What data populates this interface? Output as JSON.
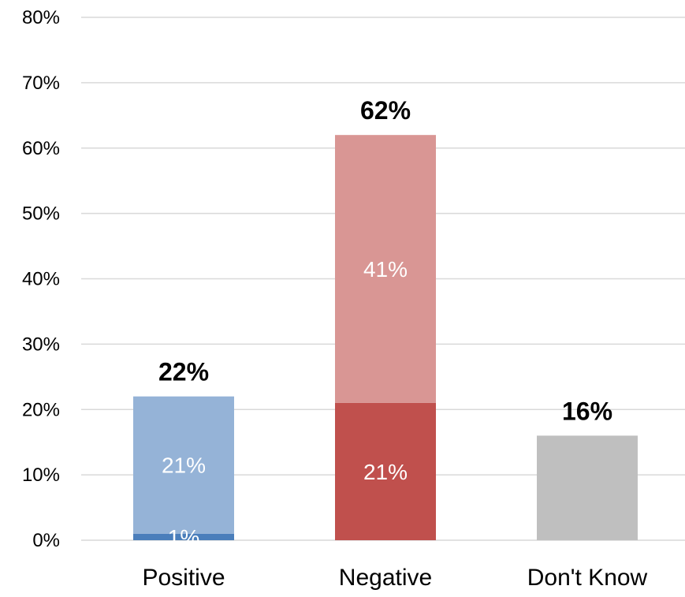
{
  "chart_data": {
    "type": "bar",
    "stacked": true,
    "categories": [
      "Positive",
      "Negative",
      "Don't Know"
    ],
    "ylim": [
      0,
      80
    ],
    "yticks": [
      "0%",
      "10%",
      "20%",
      "30%",
      "40%",
      "50%",
      "60%",
      "70%",
      "80%"
    ],
    "ytick_values": [
      0,
      10,
      20,
      30,
      40,
      50,
      60,
      70,
      80
    ],
    "grid": true,
    "legend": "none",
    "bars": [
      {
        "category": "Positive",
        "total": 22,
        "total_label": "22%",
        "segments": [
          {
            "value": 1,
            "label": "1%",
            "color": "#4a7ebb"
          },
          {
            "value": 21,
            "label": "21%",
            "color": "#95b3d7"
          }
        ]
      },
      {
        "category": "Negative",
        "total": 62,
        "total_label": "62%",
        "segments": [
          {
            "value": 21,
            "label": "21%",
            "color": "#c0504d"
          },
          {
            "value": 41,
            "label": "41%",
            "color": "#d99694"
          }
        ]
      },
      {
        "category": "Don't Know",
        "total": 16,
        "total_label": "16%",
        "segments": [
          {
            "value": 16,
            "label": "",
            "color": "#bfbfbf"
          }
        ]
      }
    ]
  }
}
